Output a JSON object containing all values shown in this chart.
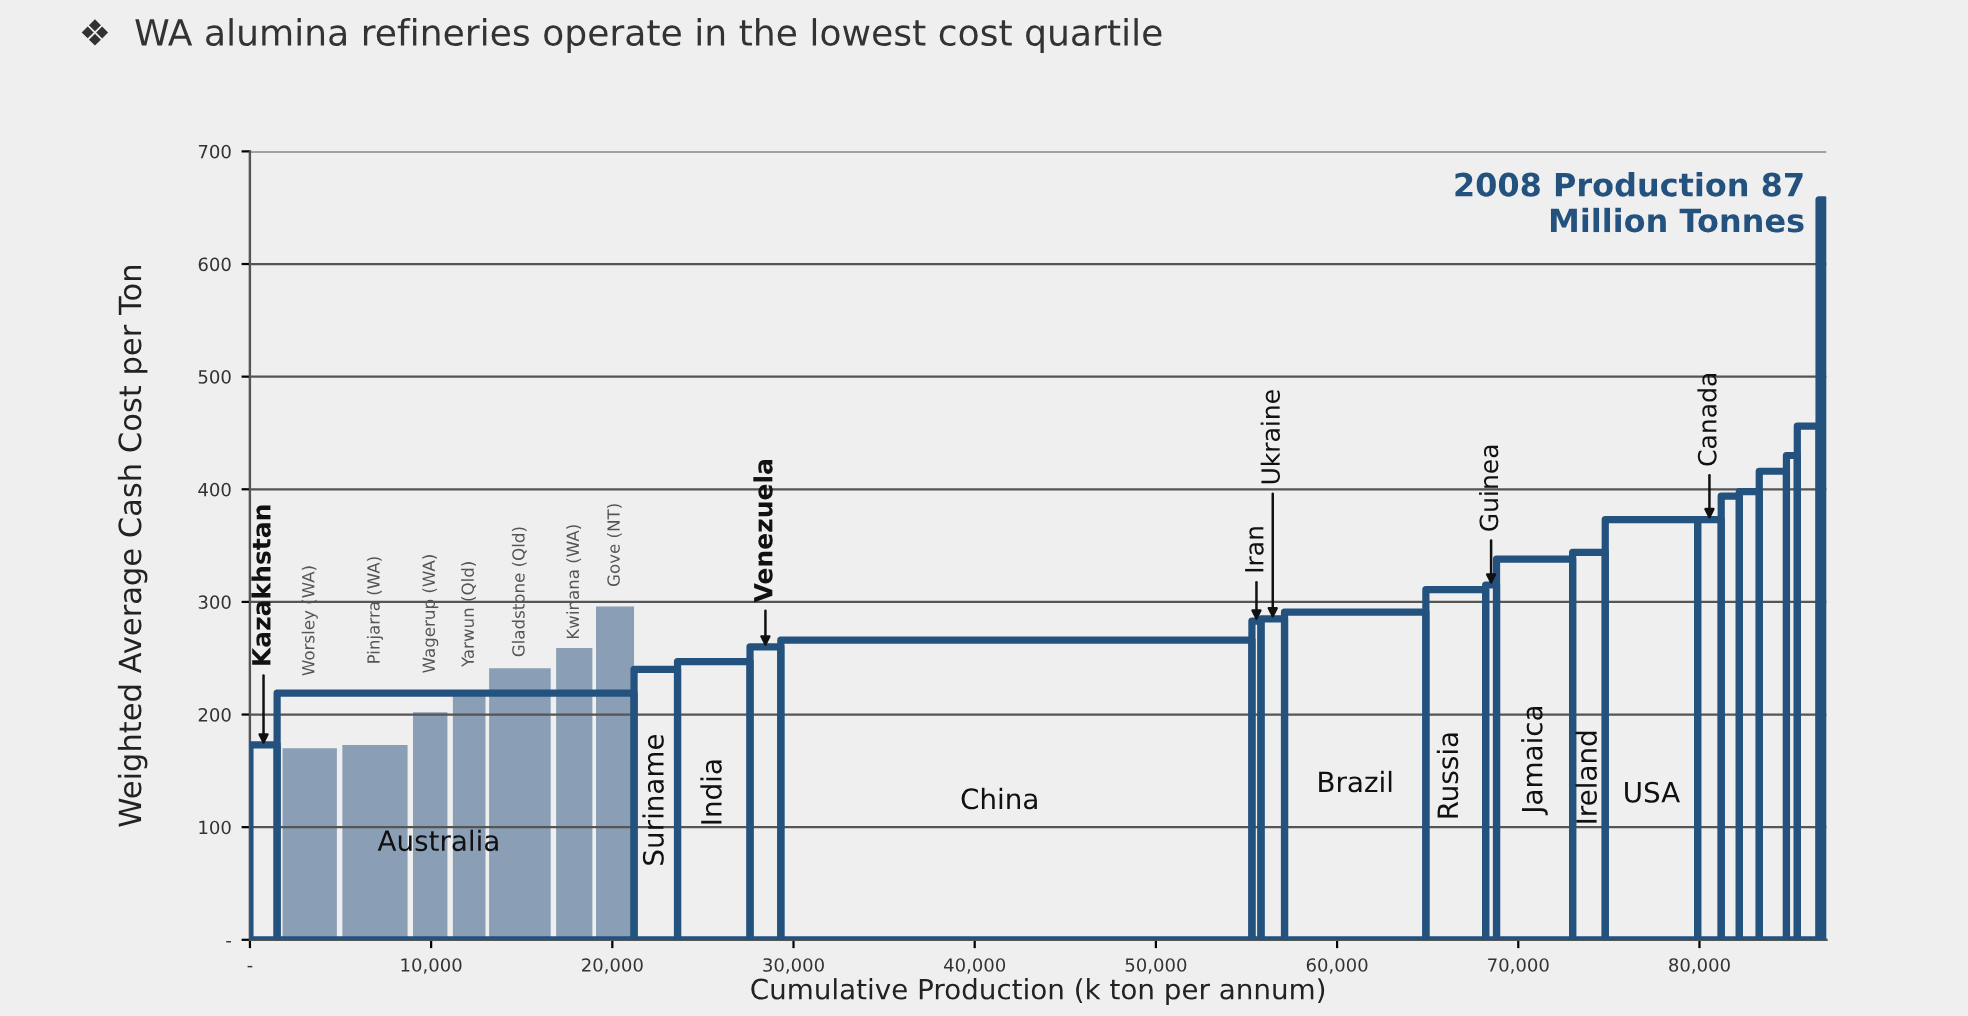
{
  "chart_data": [
    {
      "type": "histogram",
      "title": "❖  WA alumina refineries operate in the lowest cost quartile",
      "xlabel": "Cumulative Production (k ton per annum)",
      "ylabel": "Weighted Average Cash Cost per Ton",
      "color": "#24527f",
      "bins": [
        0,
        1500,
        21200,
        23600,
        27600,
        29300,
        55300,
        55800,
        57100,
        64900,
        68200,
        68800,
        73000,
        74800,
        79900,
        81200,
        82200,
        83300,
        84800,
        85400,
        86600,
        86900
      ],
      "values": [
        173,
        219,
        240,
        247,
        260,
        266,
        283,
        285,
        291,
        311,
        315,
        338,
        344,
        373,
        373,
        394,
        398,
        416,
        430,
        456,
        657
      ],
      "annotations": [
        {
          "text": "Kazakhstan",
          "x": 750,
          "y": 173
        },
        "Australia",
        "Suriname",
        "India",
        {
          "text": "Venezuela",
          "x": 28450,
          "y": 260
        },
        "China",
        {
          "text": "Iran",
          "x": 55550,
          "y": 283
        },
        {
          "text": "Ukraine",
          "x": 56450,
          "y": 285
        },
        "Brazil",
        "Russia",
        {
          "text": "Guinea",
          "x": 68500,
          "y": 315
        },
        "Jamaica",
        "Ireland",
        "USA",
        {
          "text": "Canada",
          "x": 80550,
          "y": 373
        },
        {
          "text": "2008 Production 87\nMillion Tonnes",
          "x": 86750,
          "y": 657
        }
      ],
      "xlim": [
        0,
        87000
      ],
      "ylim": [
        0,
        700
      ],
      "xticks": [
        {
          "value": 0,
          "label": "-"
        },
        {
          "value": 10000,
          "label": "10,000"
        },
        {
          "value": 20000,
          "label": "20,000"
        },
        {
          "value": 30000,
          "label": "30,000"
        },
        {
          "value": 40000,
          "label": "40,000"
        },
        {
          "value": 50000,
          "label": "50,000"
        },
        {
          "value": 60000,
          "label": "60,000"
        },
        {
          "value": 70000,
          "label": "70,000"
        },
        {
          "value": 80000,
          "label": "80,000"
        }
      ],
      "yticks": [
        {
          "value": 0,
          "label": "-"
        },
        100,
        200,
        300,
        400,
        500,
        600,
        700
      ],
      "grid": "y"
    },
    {
      "type": "histogram",
      "color": "#8a9fb6",
      "bins": [
        1800,
        4800,
        5100,
        8700,
        9000,
        10900,
        11200,
        13000,
        13200,
        16600,
        16900,
        18900,
        19100,
        21200
      ],
      "values": [
        170,
        null,
        173,
        null,
        202,
        null,
        220,
        null,
        241,
        null,
        259,
        null,
        296
      ],
      "annotations": [
        "Worsley (WA)",
        "Pinjarra (WA)",
        {
          "text": "Wagerup (WA)",
          "x": 9950,
          "y": 202
        },
        {
          "text": "Yarwun (Qld)",
          "x": 12100,
          "y": 220
        },
        {
          "text": "Gladstone (Qld)",
          "x": 14900,
          "y": 241
        },
        {
          "text": "Kwinana (WA)",
          "x": 17900,
          "y": 259
        },
        {
          "text": "Gove (NT)",
          "x": 20150,
          "y": 296
        }
      ],
      "xlim": [
        0,
        87000
      ],
      "ylim": [
        0,
        700
      ]
    }
  ]
}
